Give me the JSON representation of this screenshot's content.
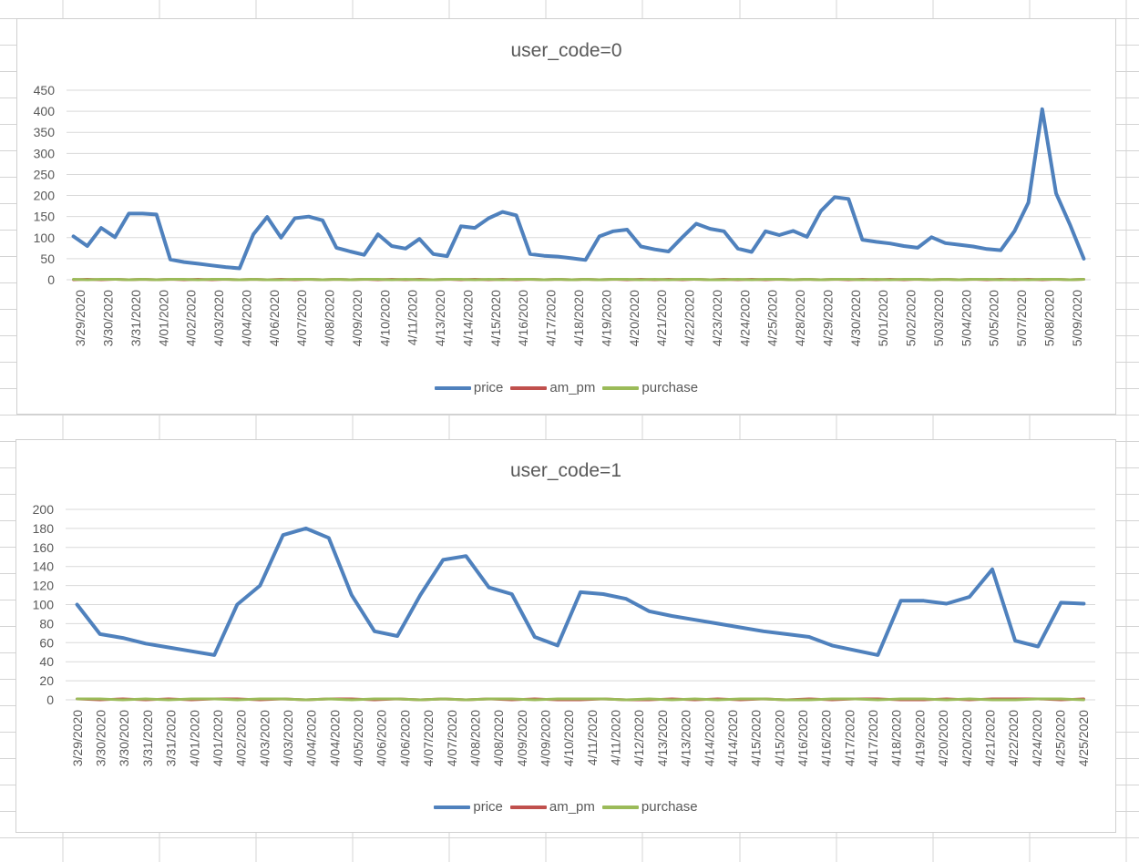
{
  "colors": {
    "price": "#4f81bd",
    "am_pm": "#c0504d",
    "purchase": "#9bbb59",
    "grid": "#d9d9d9",
    "axis_text": "#595959",
    "cell_border": "#d4d4d4"
  },
  "chart_data": [
    {
      "type": "line",
      "title": "user_code=0",
      "xlabel": "",
      "ylabel": "",
      "ylim": [
        0,
        450
      ],
      "yticks": [
        0,
        50,
        100,
        150,
        200,
        250,
        300,
        350,
        400,
        450
      ],
      "grid": true,
      "legend": "bottom",
      "tick_labels": [
        "3/29/2020",
        "3/30/2020",
        "3/31/2020",
        "4/01/2020",
        "4/02/2020",
        "4/03/2020",
        "4/04/2020",
        "4/06/2020",
        "4/07/2020",
        "4/08/2020",
        "4/09/2020",
        "4/10/2020",
        "4/11/2020",
        "4/13/2020",
        "4/14/2020",
        "4/15/2020",
        "4/16/2020",
        "4/17/2020",
        "4/18/2020",
        "4/19/2020",
        "4/20/2020",
        "4/21/2020",
        "4/22/2020",
        "4/23/2020",
        "4/24/2020",
        "4/25/2020",
        "4/28/2020",
        "4/29/2020",
        "4/30/2020",
        "5/01/2020",
        "5/02/2020",
        "5/03/2020",
        "5/04/2020",
        "5/05/2020",
        "5/07/2020",
        "5/08/2020",
        "5/09/2020"
      ],
      "series": [
        {
          "name": "price",
          "values": [
            103,
            80,
            123,
            101,
            157,
            157,
            155,
            48,
            42,
            38,
            34,
            30,
            27,
            108,
            149,
            100,
            146,
            150,
            141,
            76,
            67,
            59,
            108,
            80,
            74,
            97,
            61,
            56,
            127,
            123,
            146,
            161,
            153,
            61,
            57,
            55,
            51,
            47,
            103,
            115,
            119,
            79,
            72,
            67,
            101,
            133,
            121,
            115,
            74,
            66,
            115,
            106,
            116,
            102,
            163,
            196,
            192,
            95,
            90,
            86,
            80,
            76,
            101,
            87,
            83,
            79,
            73,
            70,
            116,
            183,
            405,
            205,
            131,
            50
          ]
        },
        {
          "name": "am_pm",
          "values": [
            0,
            1,
            0,
            1,
            0,
            1,
            0,
            1,
            0,
            1,
            0,
            1,
            0,
            1,
            0,
            1,
            0,
            1,
            0,
            1,
            0,
            1,
            0,
            1,
            0,
            1,
            0,
            1,
            0,
            1,
            0,
            1,
            0,
            1,
            0,
            1,
            0,
            1,
            0,
            1,
            0,
            1,
            0,
            1,
            0,
            1,
            0,
            1,
            0,
            1,
            0,
            1,
            0,
            1,
            0,
            1,
            0,
            1,
            0,
            1,
            0,
            1,
            0,
            1,
            0,
            1,
            0,
            1,
            0,
            1,
            0,
            1,
            0,
            1
          ]
        },
        {
          "name": "purchase",
          "values": [
            1,
            0,
            1,
            1,
            0,
            1,
            0,
            1,
            1,
            0,
            1,
            1,
            0,
            1,
            0,
            0,
            1,
            1,
            0,
            1,
            0,
            1,
            1,
            0,
            1,
            0,
            0,
            1,
            1,
            0,
            1,
            0,
            1,
            1,
            0,
            1,
            0,
            1,
            0,
            1,
            1,
            0,
            1,
            0,
            1,
            1,
            0,
            0,
            1,
            0,
            1,
            1,
            0,
            1,
            0,
            1,
            1,
            0,
            1,
            0,
            1,
            1,
            0,
            1,
            0,
            1,
            1,
            0,
            1,
            0,
            1,
            1,
            0,
            1
          ]
        }
      ]
    },
    {
      "type": "line",
      "title": "user_code=1",
      "xlabel": "",
      "ylabel": "",
      "ylim": [
        0,
        200
      ],
      "yticks": [
        0,
        20,
        40,
        60,
        80,
        100,
        120,
        140,
        160,
        180,
        200
      ],
      "grid": true,
      "legend": "bottom",
      "tick_labels": [
        "3/29/2020",
        "3/30/2020",
        "3/30/2020",
        "3/31/2020",
        "3/31/2020",
        "4/01/2020",
        "4/01/2020",
        "4/02/2020",
        "4/03/2020",
        "4/03/2020",
        "4/04/2020",
        "4/04/2020",
        "4/05/2020",
        "4/06/2020",
        "4/06/2020",
        "4/07/2020",
        "4/07/2020",
        "4/08/2020",
        "4/08/2020",
        "4/09/2020",
        "4/09/2020",
        "4/10/2020",
        "4/11/2020",
        "4/11/2020",
        "4/12/2020",
        "4/13/2020",
        "4/13/2020",
        "4/14/2020",
        "4/14/2020",
        "4/15/2020",
        "4/15/2020",
        "4/16/2020",
        "4/16/2020",
        "4/17/2020",
        "4/17/2020",
        "4/18/2020",
        "4/19/2020",
        "4/20/2020",
        "4/20/2020",
        "4/21/2020",
        "4/22/2020",
        "4/24/2020",
        "4/25/2020",
        "4/25/2020"
      ],
      "series": [
        {
          "name": "price",
          "values": [
            100,
            69,
            65,
            59,
            55,
            51,
            47,
            100,
            120,
            173,
            180,
            170,
            110,
            72,
            67,
            110,
            147,
            151,
            118,
            111,
            66,
            57,
            113,
            111,
            106,
            93,
            88,
            84,
            80,
            76,
            72,
            69,
            66,
            57,
            52,
            47,
            104,
            104,
            101,
            108,
            137,
            62,
            56,
            102,
            101
          ]
        },
        {
          "name": "am_pm",
          "values": [
            1,
            0,
            1,
            0,
            1,
            0,
            1,
            1,
            0,
            1,
            0,
            1,
            1,
            0,
            1,
            0,
            1,
            0,
            1,
            0,
            1,
            0,
            0,
            1,
            0,
            0,
            1,
            0,
            1,
            0,
            1,
            0,
            1,
            0,
            1,
            1,
            0,
            0,
            1,
            0,
            1,
            1,
            1,
            0,
            1
          ]
        },
        {
          "name": "purchase",
          "values": [
            1,
            1,
            0,
            1,
            0,
            1,
            1,
            0,
            1,
            1,
            0,
            1,
            0,
            1,
            1,
            0,
            1,
            0,
            1,
            1,
            0,
            1,
            1,
            1,
            0,
            1,
            0,
            1,
            0,
            1,
            1,
            0,
            0,
            1,
            1,
            0,
            1,
            1,
            0,
            1,
            0,
            0,
            1,
            1,
            0
          ]
        }
      ]
    }
  ]
}
